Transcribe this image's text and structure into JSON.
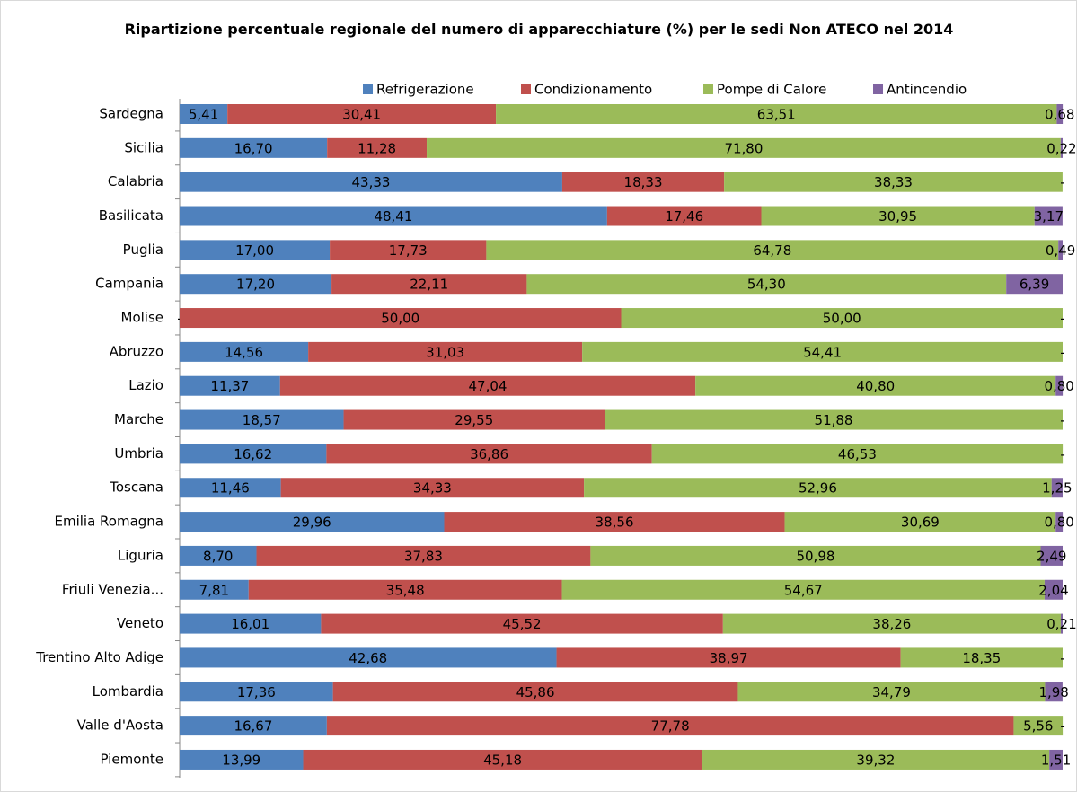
{
  "chart_data": {
    "type": "stacked-barh",
    "title": "Ripartizione percentuale regionale del numero di apparecchiature (%) per le sedi  Non ATECO nel 2014",
    "categories": [
      "Sardegna",
      "Sicilia",
      "Calabria",
      "Basilicata",
      "Puglia",
      "Campania",
      "Molise",
      "Abruzzo",
      "Lazio",
      "Marche",
      "Umbria",
      "Toscana",
      "Emilia Romagna",
      "Liguria",
      "Friuli Venezia...",
      "Veneto",
      "Trentino Alto Adige",
      "Lombardia",
      "Valle d'Aosta",
      "Piemonte"
    ],
    "xlim": [
      0,
      100
    ],
    "series": [
      {
        "name": "Refrigerazione",
        "color": "#4f81bd",
        "values": [
          5.41,
          16.7,
          43.33,
          48.41,
          17.0,
          17.2,
          0,
          14.56,
          11.37,
          18.57,
          16.62,
          11.46,
          29.96,
          8.7,
          7.81,
          16.01,
          42.68,
          17.36,
          16.67,
          13.99
        ],
        "value_labels": [
          "5,41",
          "16,70",
          "43,33",
          "48,41",
          "17,00",
          "17,20",
          "-",
          "14,56",
          "11,37",
          "18,57",
          "16,62",
          "11,46",
          "29,96",
          "8,70",
          "7,81",
          "16,01",
          "42,68",
          "17,36",
          "16,67",
          "13,99"
        ]
      },
      {
        "name": "Condizionamento",
        "color": "#c0504d",
        "values": [
          30.41,
          11.28,
          18.33,
          17.46,
          17.73,
          22.11,
          50.0,
          31.03,
          47.04,
          29.55,
          36.86,
          34.33,
          38.56,
          37.83,
          35.48,
          45.52,
          38.97,
          45.86,
          77.78,
          45.18
        ],
        "value_labels": [
          "30,41",
          "11,28",
          "18,33",
          "17,46",
          "17,73",
          "22,11",
          "50,00",
          "31,03",
          "47,04",
          "29,55",
          "36,86",
          "34,33",
          "38,56",
          "37,83",
          "35,48",
          "45,52",
          "38,97",
          "45,86",
          "77,78",
          "45,18"
        ]
      },
      {
        "name": "Pompe di Calore",
        "color": "#9bbb59",
        "values": [
          63.51,
          71.8,
          38.33,
          30.95,
          64.78,
          54.3,
          50.0,
          54.41,
          40.8,
          51.88,
          46.53,
          52.96,
          30.69,
          50.98,
          54.67,
          38.26,
          18.35,
          34.79,
          5.56,
          39.32
        ],
        "value_labels": [
          "63,51",
          "71,80",
          "38,33",
          "30,95",
          "64,78",
          "54,30",
          "50,00",
          "54,41",
          "40,80",
          "51,88",
          "46,53",
          "52,96",
          "30,69",
          "50,98",
          "54,67",
          "38,26",
          "18,35",
          "34,79",
          "5,56",
          "39,32"
        ]
      },
      {
        "name": "Antincendio",
        "color": "#8064a2",
        "values": [
          0.68,
          0.22,
          0,
          3.17,
          0.49,
          6.39,
          0,
          0,
          0.8,
          0,
          0,
          1.25,
          0.8,
          2.49,
          2.04,
          0.21,
          0,
          1.98,
          0,
          1.51
        ],
        "value_labels": [
          "0,68",
          "0,22",
          "-",
          "3,17",
          "0,49",
          "6,39",
          "-",
          "-",
          "0,80",
          "-",
          "-",
          "1,25",
          "0,80",
          "2,49",
          "2,04",
          "0,21",
          "-",
          "1,98",
          "-",
          "1,51"
        ]
      }
    ]
  }
}
